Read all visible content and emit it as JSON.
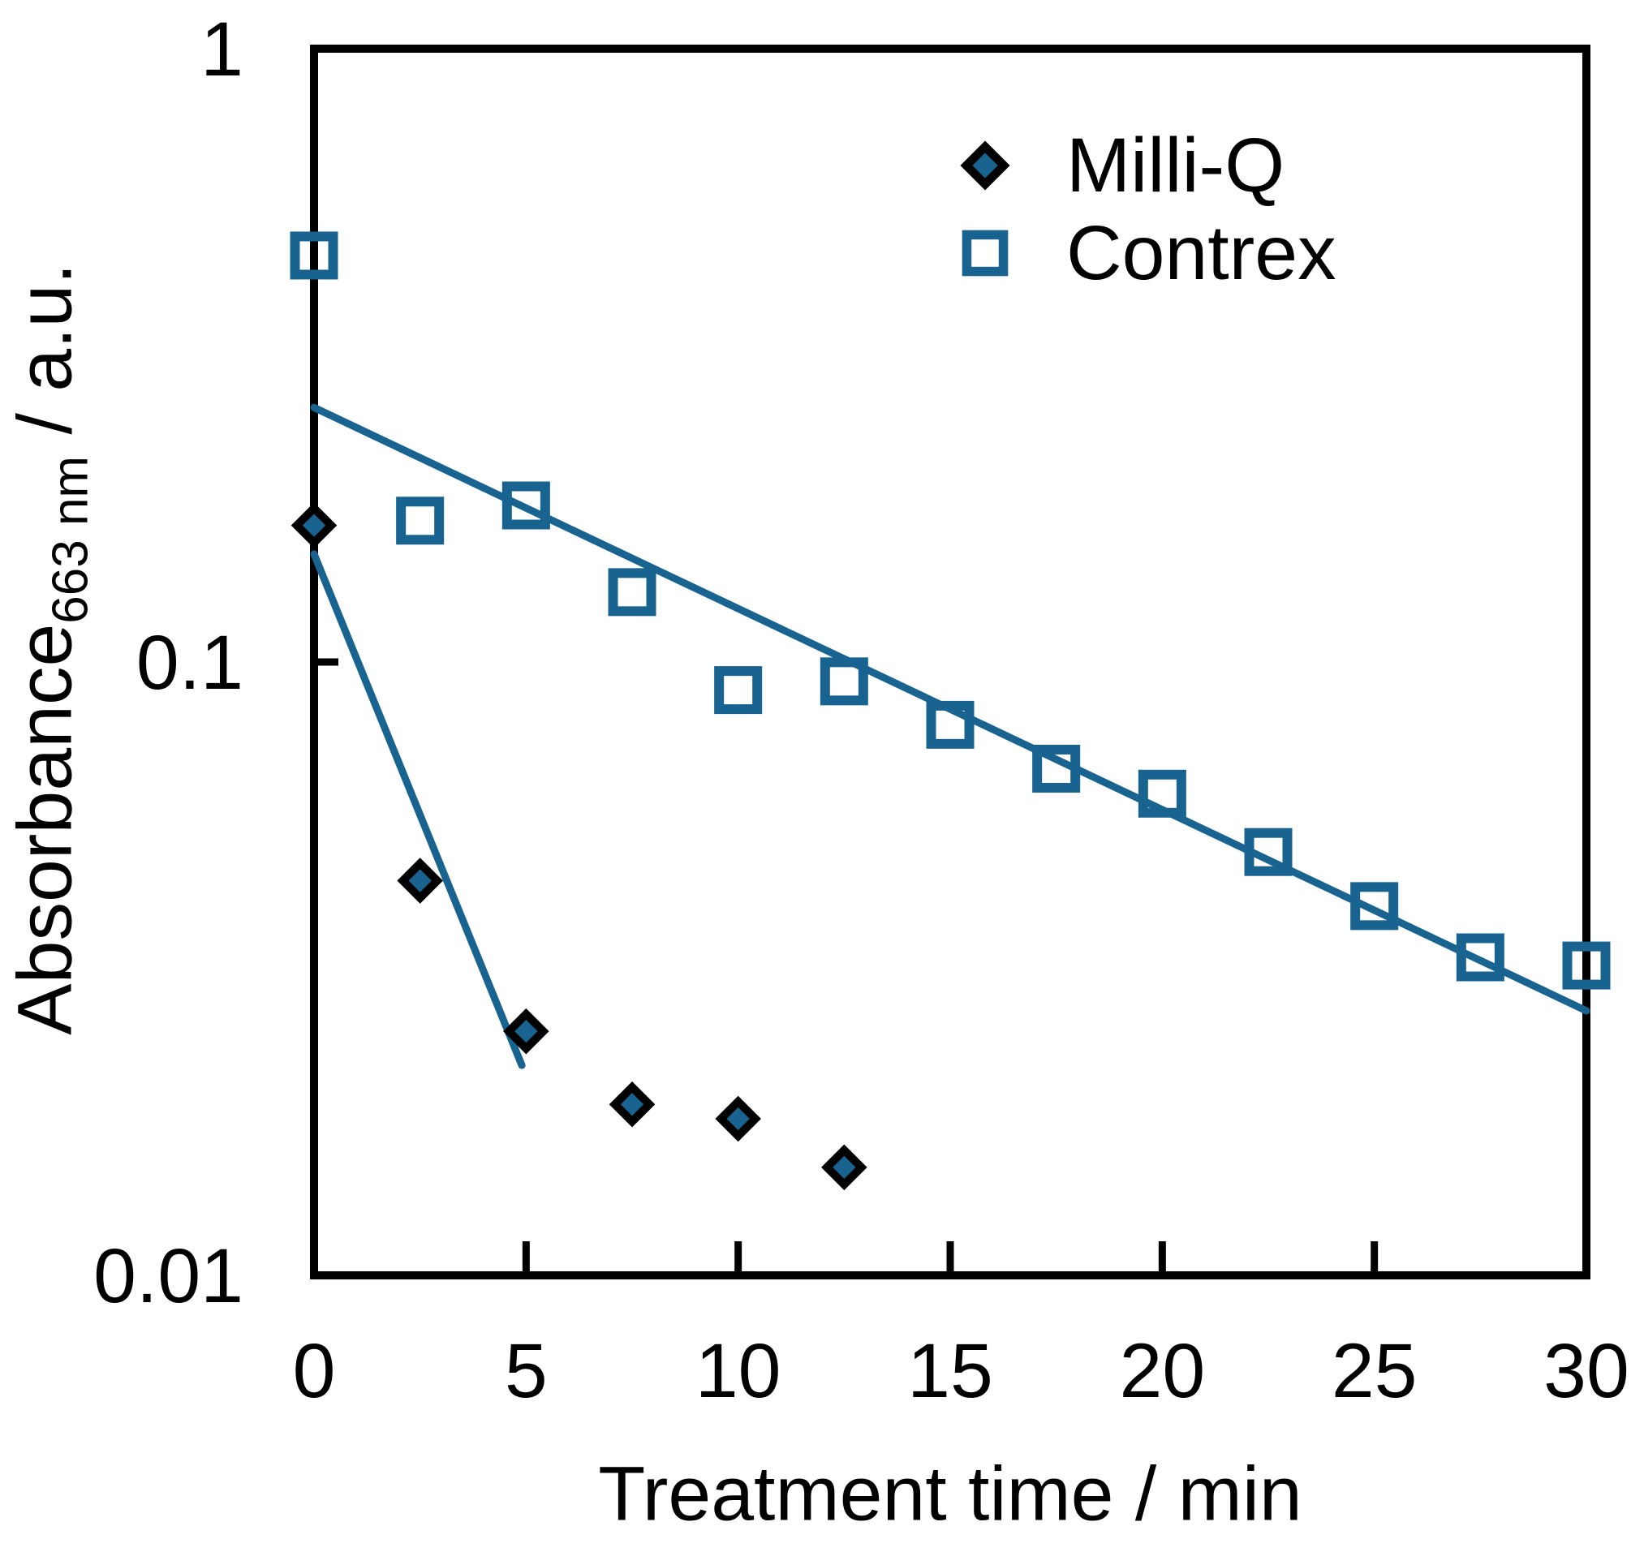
{
  "chart_data": {
    "type": "scatter",
    "title": "",
    "xlabel": "Treatment time / min",
    "ylabel": {
      "main": "Absorbance",
      "sub": "663 nm",
      "unit": " / a.u."
    },
    "x_axis": {
      "min": 0,
      "max": 30,
      "ticks": [
        0,
        5,
        10,
        15,
        20,
        25,
        30
      ],
      "tick_labels": [
        "0",
        "5",
        "10",
        "15",
        "20",
        "25",
        "30"
      ]
    },
    "y_axis": {
      "scale": "log",
      "min": 0.01,
      "max": 1,
      "ticks": [
        1,
        0.1,
        0.01
      ],
      "tick_labels": [
        "1",
        "0.1",
        "0.01"
      ]
    },
    "grid": "off",
    "legend_position": "top-right-inside",
    "colors": {
      "accent_blue": "#196390",
      "axis_black": "#000000",
      "background": "#ffffff"
    },
    "series": [
      {
        "name": "Milli-Q",
        "marker": "filled-diamond",
        "marker_fill": "#196390",
        "marker_outline": "#000000",
        "points": [
          {
            "x": 0,
            "y": 0.167
          },
          {
            "x": 2.5,
            "y": 0.044
          },
          {
            "x": 5,
            "y": 0.025
          },
          {
            "x": 7.5,
            "y": 0.019
          },
          {
            "x": 10,
            "y": 0.018
          },
          {
            "x": 12.5,
            "y": 0.015
          }
        ],
        "fit_line": {
          "x1": 0,
          "y1": 0.15,
          "x2": 4.9,
          "y2": 0.022,
          "color": "#196390"
        }
      },
      {
        "name": "Contrex",
        "marker": "open-square",
        "marker_fill": "none",
        "marker_outline": "#196390",
        "points": [
          {
            "x": 0,
            "y": 0.46
          },
          {
            "x": 2.5,
            "y": 0.17
          },
          {
            "x": 5,
            "y": 0.18
          },
          {
            "x": 7.5,
            "y": 0.13
          },
          {
            "x": 10,
            "y": 0.09
          },
          {
            "x": 12.5,
            "y": 0.093
          },
          {
            "x": 15,
            "y": 0.079
          },
          {
            "x": 17.5,
            "y": 0.067
          },
          {
            "x": 20,
            "y": 0.061
          },
          {
            "x": 22.5,
            "y": 0.049
          },
          {
            "x": 25,
            "y": 0.04
          },
          {
            "x": 27.5,
            "y": 0.033
          },
          {
            "x": 30,
            "y": 0.032
          }
        ],
        "fit_line": {
          "x1": 0,
          "y1": 0.26,
          "x2": 30,
          "y2": 0.027,
          "color": "#196390"
        }
      }
    ]
  }
}
